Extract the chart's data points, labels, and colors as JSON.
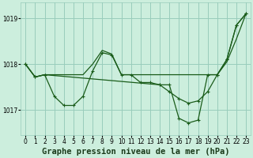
{
  "background_color": "#cceedd",
  "grid_color": "#99ccbb",
  "line_color": "#1a5c1a",
  "title": "Graphe pression niveau de la mer (hPa)",
  "xlim": [
    -0.5,
    23.5
  ],
  "ylim": [
    1016.45,
    1019.35
  ],
  "yticks": [
    1017,
    1018,
    1019
  ],
  "xticks": [
    0,
    1,
    2,
    3,
    4,
    5,
    6,
    7,
    8,
    9,
    10,
    11,
    12,
    13,
    14,
    15,
    16,
    17,
    18,
    19,
    20,
    21,
    22,
    23
  ],
  "title_fontsize": 7.5,
  "tick_fontsize": 5.5,
  "series": [
    {
      "x": [
        0,
        1,
        2,
        3,
        4,
        5,
        6,
        7,
        8,
        9,
        10,
        11,
        12,
        13,
        14,
        15,
        16,
        17,
        18,
        19,
        20,
        21,
        22,
        23
      ],
      "y": [
        1017.97,
        1017.72,
        1017.77,
        1017.72,
        1017.77,
        1017.72,
        1017.72,
        1017.75,
        1017.77,
        1017.77,
        1017.77,
        1017.77,
        1017.77,
        1017.77,
        1017.77,
        1017.77,
        1017.77,
        1017.77,
        1017.77,
        1017.77,
        1017.77,
        1017.77,
        1018.6,
        1019.1
      ]
    },
    {
      "x": [
        0,
        1,
        2,
        3,
        4,
        5,
        6,
        7,
        8,
        9,
        10,
        11,
        12,
        13,
        14,
        15,
        16,
        17,
        18,
        19,
        20,
        21,
        22,
        23
      ],
      "y": [
        1018.0,
        1017.72,
        1017.77,
        1017.3,
        1017.1,
        1017.1,
        1017.3,
        1017.85,
        1018.25,
        1018.2,
        1017.85,
        1017.77,
        1017.77,
        1017.6,
        1017.6,
        1017.4,
        1017.2,
        1017.15,
        1017.2,
        1017.4,
        1017.77,
        1018.1,
        1018.9,
        1019.1
      ]
    },
    {
      "x": [
        0,
        2,
        9,
        14,
        19,
        20,
        21,
        22,
        23
      ],
      "y": [
        1018.0,
        1017.77,
        1018.2,
        1017.77,
        1017.77,
        1017.77,
        1018.1,
        1018.9,
        1019.1
      ]
    }
  ]
}
